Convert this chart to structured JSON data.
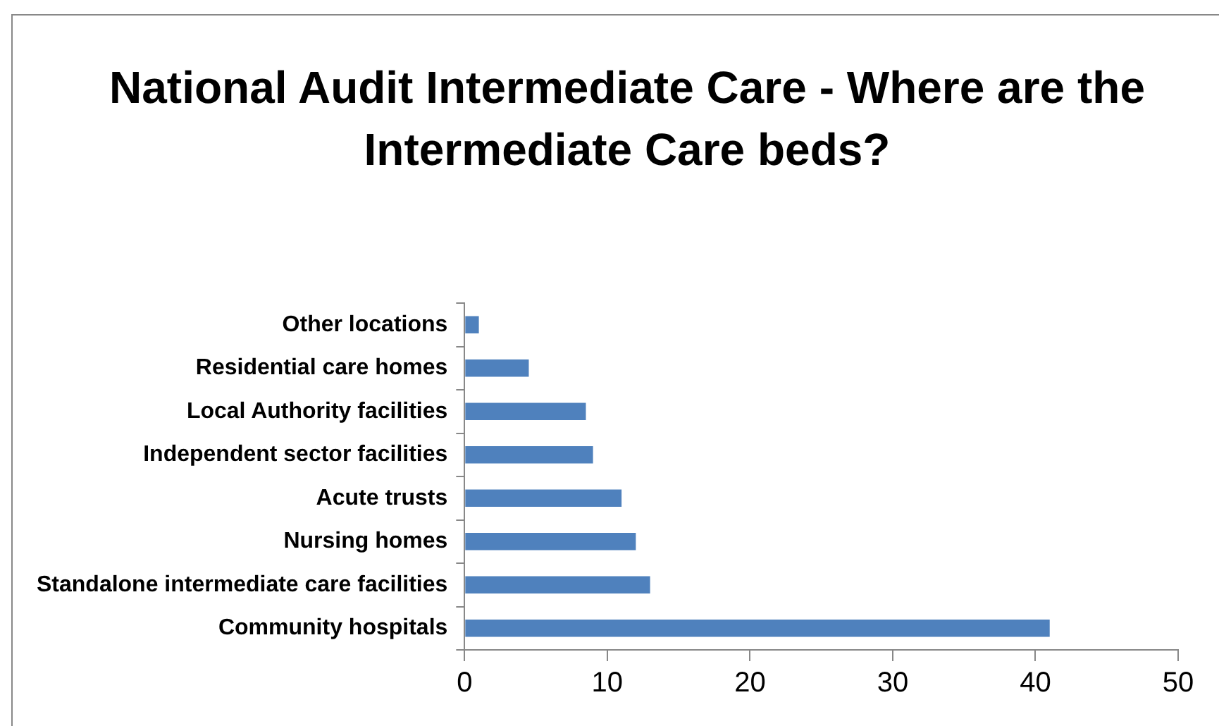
{
  "chart_data": {
    "type": "bar",
    "orientation": "horizontal",
    "title": "National Audit Intermediate Care - Where are the Intermediate Care beds?",
    "categories": [
      "Other locations",
      "Residential care homes",
      "Local Authority facilities",
      "Independent sector facilities",
      "Acute trusts",
      "Nursing homes",
      "Standalone intermediate care facilities",
      "Community hospitals"
    ],
    "values": [
      1,
      4.5,
      8.5,
      9,
      11,
      12,
      13,
      41
    ],
    "color": "#4f81bd",
    "xlim": [
      0,
      50
    ],
    "xticks": [
      0,
      10,
      20,
      30,
      40,
      50
    ],
    "grid": false,
    "legend": false
  }
}
